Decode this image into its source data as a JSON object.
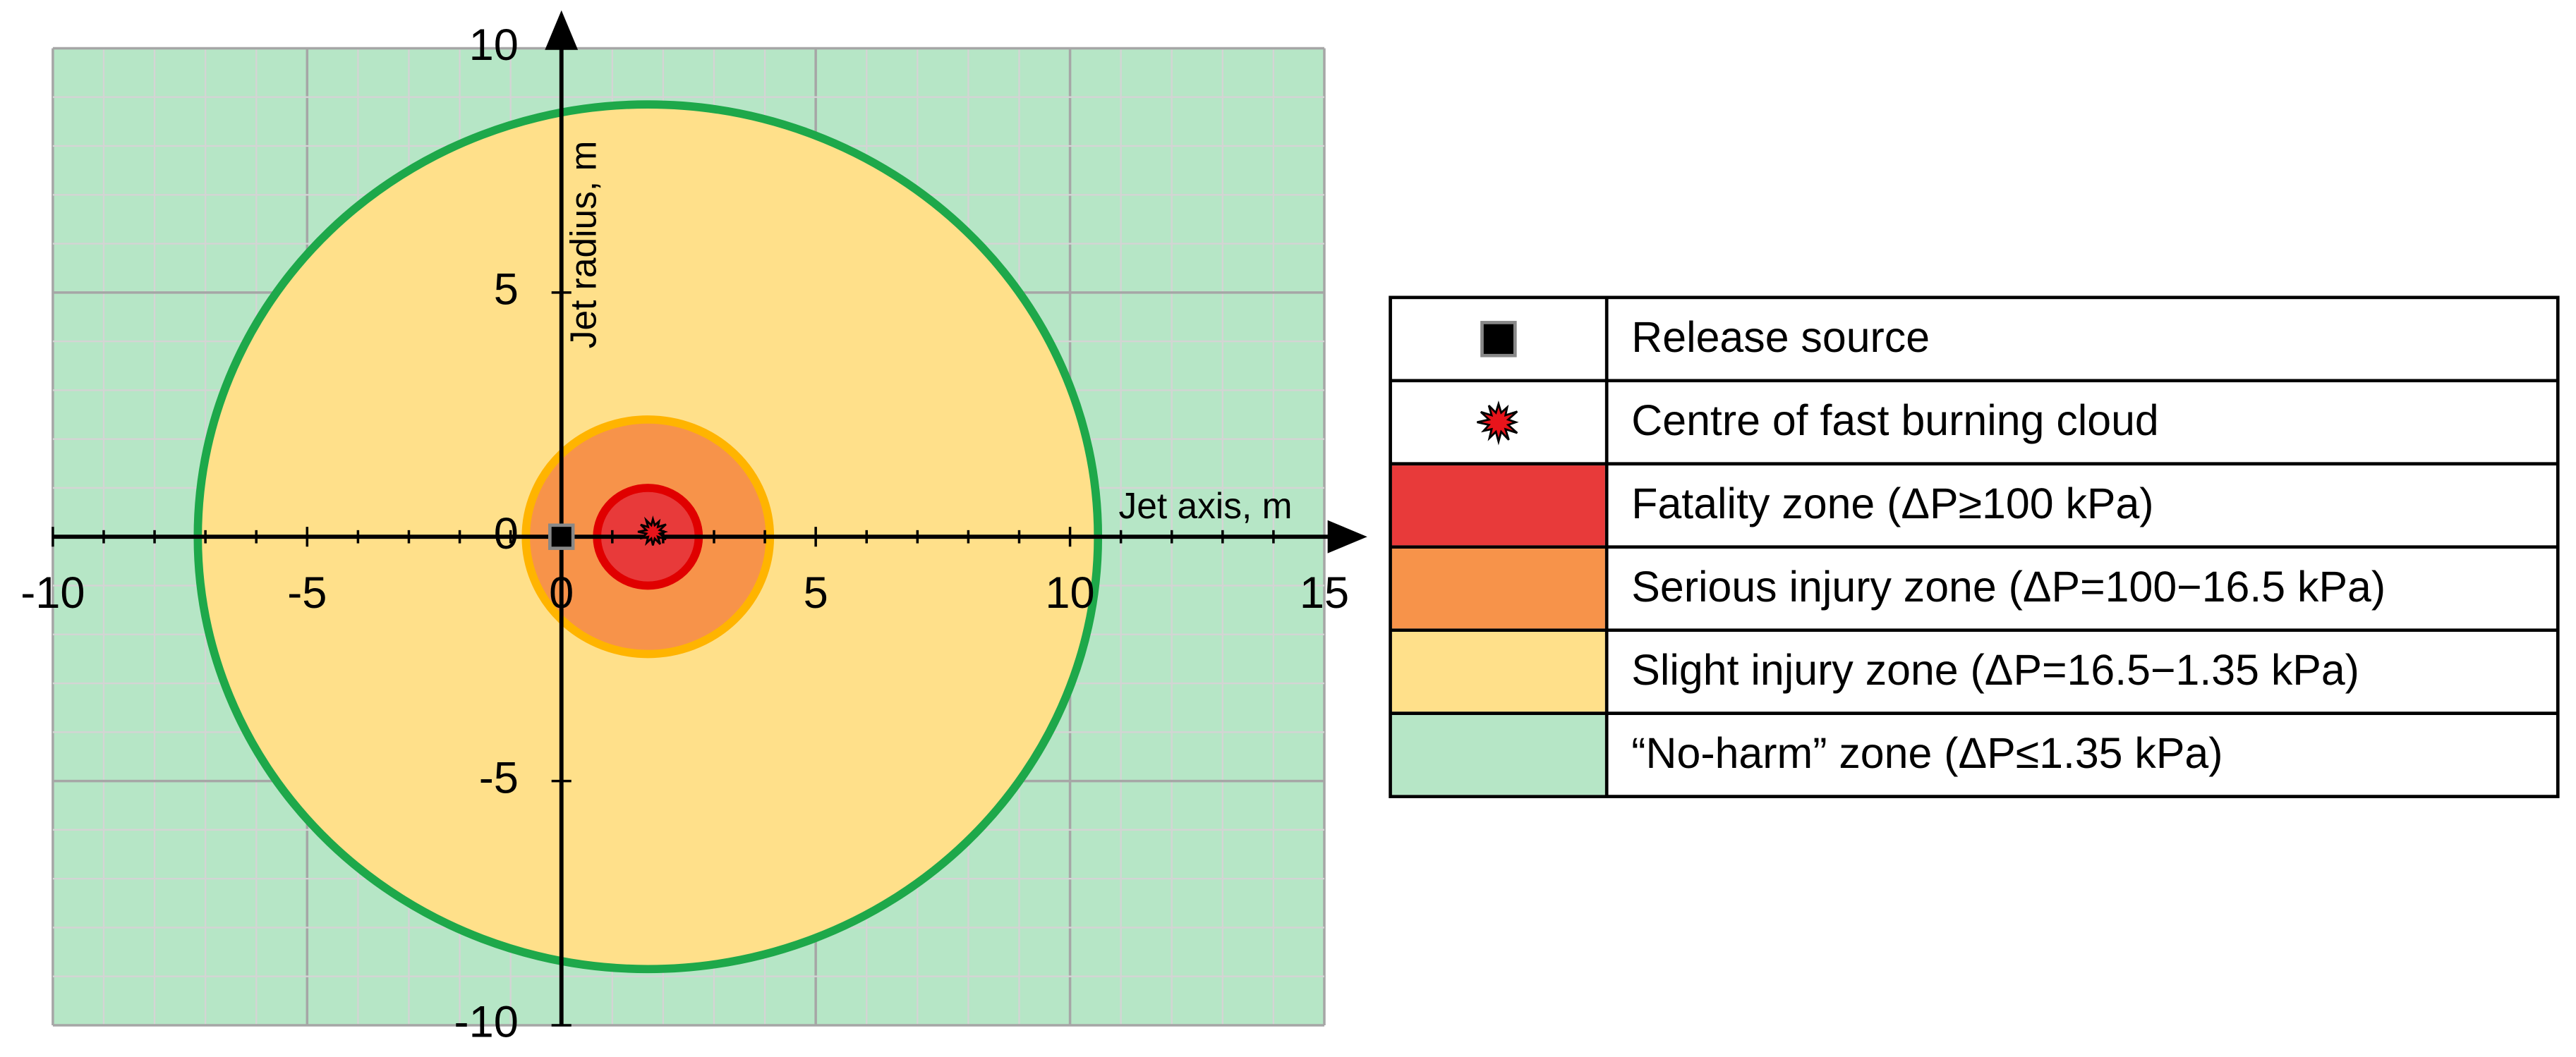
{
  "chart_data": {
    "type": "zones",
    "x_label": "Jet axis, m",
    "y_label": "Jet radius, m",
    "xlim": [
      -10,
      15
    ],
    "ylim": [
      -10,
      10
    ],
    "xticks": [
      -10,
      -5,
      0,
      5,
      10,
      15
    ],
    "yticks": [
      -10,
      -5,
      0,
      5,
      10
    ],
    "grid": true,
    "minor_grid": true,
    "legend_position": "right",
    "series": [
      {
        "name": "Release source",
        "marker": "square",
        "color": "#000000",
        "x": [
          0
        ],
        "values": [
          0
        ]
      },
      {
        "name": "Centre of fast burning cloud",
        "marker": "burst",
        "color": "#e8141b",
        "x": [
          1.8
        ],
        "values": [
          0.1
        ]
      }
    ],
    "zones": [
      {
        "name": "Fatality zone (ΔP≥100 kPa)",
        "color": "#e83a3a",
        "edge": "#e00000",
        "x": 1.7,
        "y": 0,
        "radius": 1.0
      },
      {
        "name": "Serious injury zone (ΔP=100−16.5 kPa)",
        "color": "#f7934a",
        "edge": "#ffb400",
        "x": 1.7,
        "y": 0,
        "radius": 2.4
      },
      {
        "name": "Slight injury zone (ΔP=16.5−1.35 kPa)",
        "color": "#ffe08a",
        "edge": "#1ea84a",
        "x": 1.7,
        "y": 0,
        "radius": 8.85
      },
      {
        "name": "“No-harm” zone (ΔP≤1.35 kPa)",
        "color": "#b6e6c6"
      }
    ]
  }
}
